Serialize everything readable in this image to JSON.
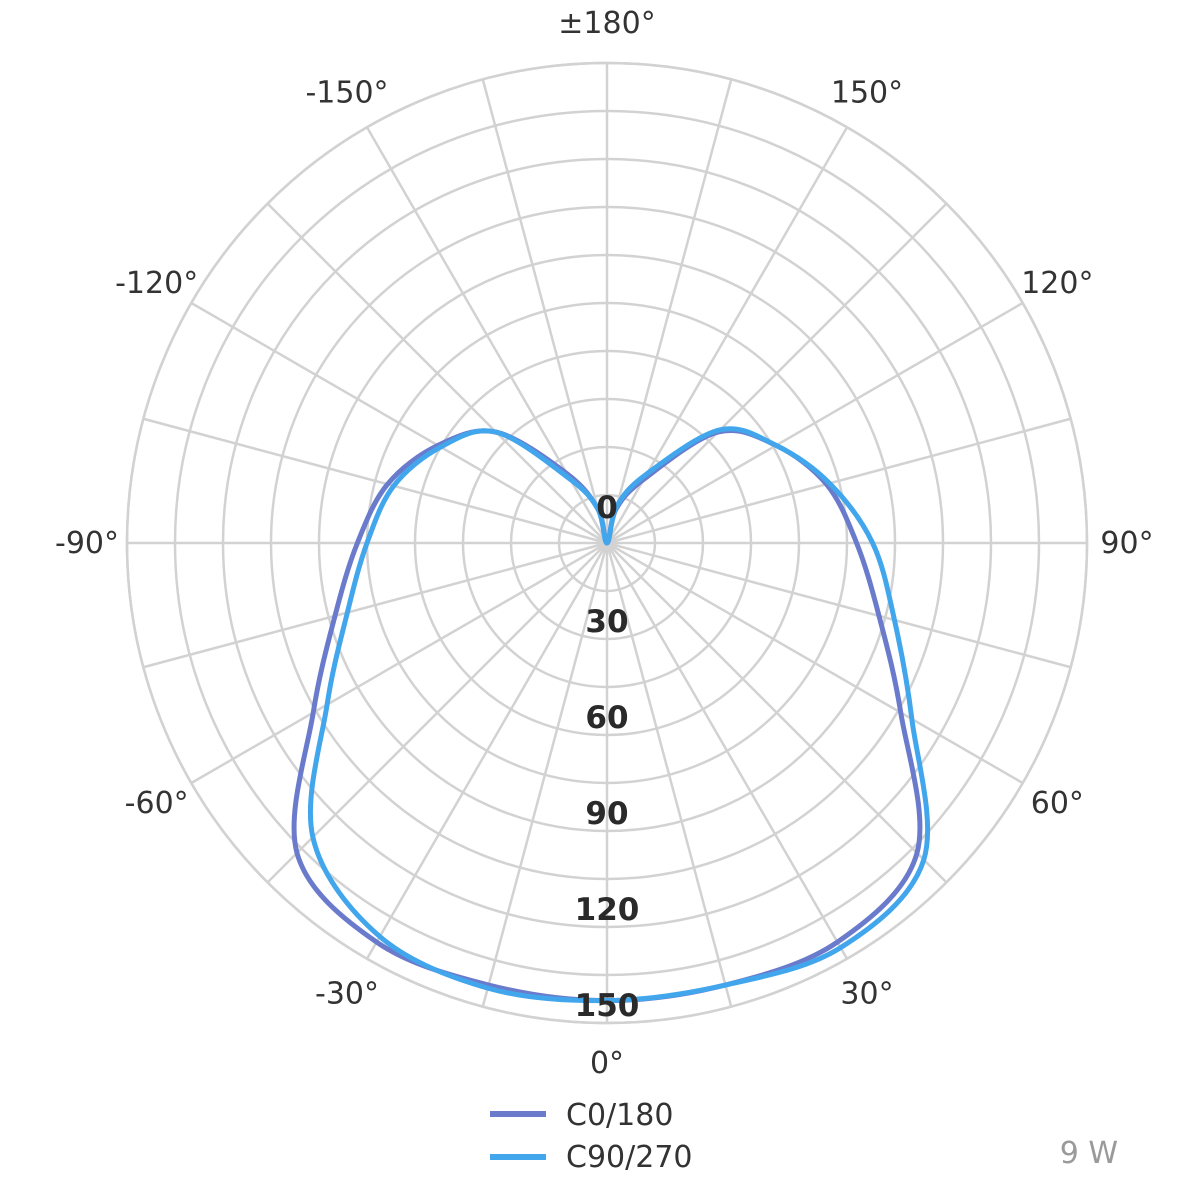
{
  "chart_data": {
    "type": "polar-line",
    "title": "",
    "angle_unit": "degrees",
    "angle_tick_step": 15,
    "angle_labels": [
      {
        "angle": 0,
        "text": "0°"
      },
      {
        "angle": 30,
        "text": "30°"
      },
      {
        "angle": 60,
        "text": "60°"
      },
      {
        "angle": 90,
        "text": "90°"
      },
      {
        "angle": 120,
        "text": "120°"
      },
      {
        "angle": 150,
        "text": "150°"
      },
      {
        "angle": 180,
        "text": "±180°"
      },
      {
        "angle": -150,
        "text": "-150°"
      },
      {
        "angle": -120,
        "text": "-120°"
      },
      {
        "angle": -90,
        "text": "-90°"
      },
      {
        "angle": -60,
        "text": "-60°"
      },
      {
        "angle": -30,
        "text": "-30°"
      }
    ],
    "radial_ticks": [
      0,
      30,
      60,
      90,
      120,
      150
    ],
    "radial_labels": [
      "0",
      "30",
      "60",
      "90",
      "120",
      "150"
    ],
    "r_max": 150,
    "grid": true,
    "legend_position": "bottom",
    "series": [
      {
        "name": "C0/180",
        "color": "#6b7bcc",
        "angles": [
          0,
          15,
          30,
          45,
          60,
          75,
          90,
          105,
          120,
          135,
          150,
          165,
          180,
          -165,
          -150,
          -135,
          -120,
          -105,
          -90,
          -75,
          -60,
          -45,
          -30,
          -15
        ],
        "values": [
          143,
          143,
          144,
          137,
          106,
          88,
          78,
          71,
          61,
          49,
          23,
          11,
          0,
          11,
          25,
          49,
          61,
          71,
          78,
          88,
          106,
          137,
          144,
          143
        ]
      },
      {
        "name": "C90/270",
        "color": "#42a6ec",
        "angles": [
          0,
          15,
          30,
          45,
          60,
          75,
          90,
          105,
          120,
          135,
          150,
          165,
          180,
          -165,
          -150,
          -135,
          -120,
          -105,
          -90,
          -75,
          -60,
          -45,
          -30,
          -15
        ],
        "values": [
          143,
          143,
          146,
          140,
          110,
          93,
          83,
          72,
          61,
          50,
          25,
          12,
          0,
          11,
          23,
          49,
          60,
          69,
          75,
          84,
          101,
          130,
          142,
          144
        ]
      }
    ]
  },
  "legend": {
    "items": [
      {
        "label": "C0/180",
        "color": "#6b7bcc"
      },
      {
        "label": "C90/270",
        "color": "#42a6ec"
      }
    ]
  },
  "power_label": "9 W"
}
